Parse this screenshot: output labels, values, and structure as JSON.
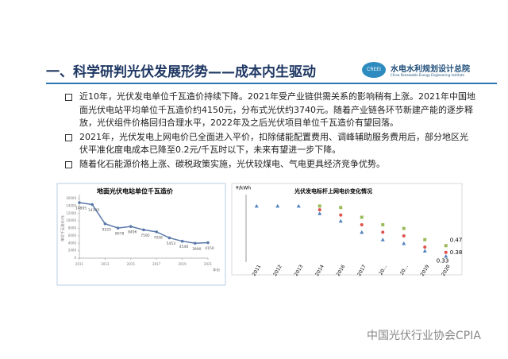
{
  "header": {
    "title": "一、科学研判光伏发展形势——成本内生驱动",
    "logo_name": "水电水利规划设计总院",
    "logo_en": "China Renewable Energy Engineering Institute",
    "logo_mark": "CREEI"
  },
  "bullets": [
    "近10年，光伏发电单位千瓦造价持续下降。2021年受产业链供需关系的影响稍有上涨。2021年中国地面光伏电站平均单位千瓦造价约4150元，分布式光伏约3740元。随着产业链各环节新建产能的逐步释放，光伏组件价格回归合理水平，2022年及之后光伏项目单位千瓦造价有望回落。",
    "2021年，光伏发电上网电价已全面进入平价，扣除储能配置费用、调峰辅助服务费用后，部分地区光伏平准化度电成本已降至0.2元/千瓦时以下，未来有望进一步下降。",
    "随着化石能源价格上涨、碳税政策实施，光伏较煤电、气电更具经济竞争优势。"
  ],
  "chart_data": [
    {
      "type": "line",
      "title": "地面光伏电站单位千瓦造价",
      "y_label": "单位千瓦造价/元",
      "x_label": "年份",
      "color": "#5a78aa",
      "x": [
        2011,
        2012,
        2013,
        2014,
        2015,
        2016,
        2017,
        2018,
        2019,
        2020,
        2021
      ],
      "values": [
        14895,
        14395,
        9225,
        8078,
        8496,
        7595,
        7058,
        5453,
        4546,
        3990,
        4150
      ],
      "xlim": [
        2011,
        2021
      ],
      "xticks": [
        2011,
        2013,
        2015,
        2017,
        2019,
        2021
      ],
      "ylim": [
        0,
        16000
      ],
      "yticks": [
        0,
        2000,
        4000,
        6000,
        8000,
        10000,
        12000,
        14000,
        16000
      ],
      "grid": false
    },
    {
      "type": "scatter",
      "title": "光伏发电标杆上网电价变化情况",
      "y_label": "¥/kWh",
      "categories": [
        "2011",
        "2012",
        "2013",
        "2014",
        "2016",
        "2017",
        "20…",
        "20…",
        "2019",
        "2020"
      ],
      "ylim": [
        0.25,
        1.1
      ],
      "series": [
        {
          "color": "#4f81bd",
          "marker": "triangle",
          "values": [
            1.0,
            1.0,
            1.0,
            0.9,
            0.8,
            0.65,
            0.55,
            0.5,
            0.4,
            0.33
          ]
        },
        {
          "color": "#e0504d",
          "marker": "circle",
          "values": [
            null,
            null,
            null,
            0.95,
            0.88,
            0.75,
            0.65,
            0.6,
            0.45,
            0.38
          ]
        },
        {
          "color": "#9bbb59",
          "marker": "square",
          "values": [
            null,
            null,
            null,
            1.0,
            0.98,
            0.85,
            0.75,
            0.7,
            0.55,
            0.47
          ]
        }
      ]
    }
  ],
  "watermark": "中国光伏行业协会CPIA"
}
